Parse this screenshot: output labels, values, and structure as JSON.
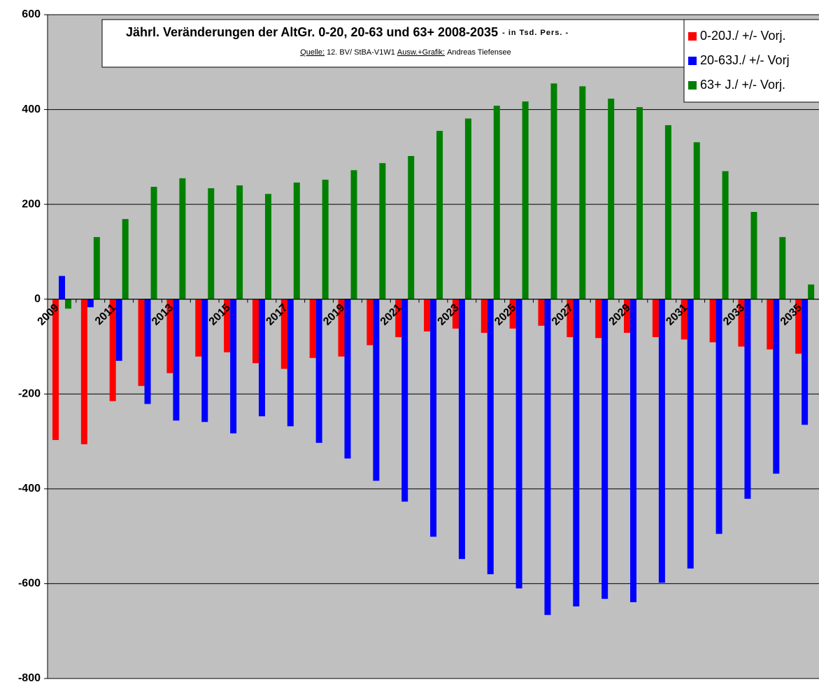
{
  "chart_data": {
    "type": "bar",
    "title": "Jährl. Veränderungen der AltGr. 0-20, 20-63 und 63+ 2008-2035",
    "title_suffix": "- in Tsd. Pers. -",
    "source": [
      "Quelle:",
      "12. BV/ StBA-V1W1",
      "Ausw.+Grafik:",
      "Andreas Tiefensee"
    ],
    "categories": [
      "2009",
      null,
      "2011",
      null,
      "2013",
      null,
      "2015",
      null,
      "2017",
      null,
      "2019",
      null,
      "2021",
      null,
      "2023",
      null,
      "2025",
      null,
      "2027",
      null,
      "2029",
      null,
      "2031",
      null,
      "2033",
      null,
      "2035"
    ],
    "series": [
      {
        "name": "0-20J./ +/- Vorj.",
        "color": "#ff0000",
        "values": [
          -297,
          -306,
          -215,
          -183,
          -156,
          -121,
          -112,
          -135,
          -147,
          -124,
          -121,
          -97,
          -80,
          -68,
          -62,
          -71,
          -62,
          -56,
          -80,
          -82,
          -71,
          -80,
          -85,
          -91,
          -100,
          -106,
          -115
        ]
      },
      {
        "name": "20-63J./ +/- Vorj",
        "color": "#0000ff",
        "values": [
          49,
          -17,
          -130,
          -221,
          -256,
          -259,
          -283,
          -247,
          -268,
          -303,
          -336,
          -383,
          -427,
          -501,
          -548,
          -580,
          -610,
          -666,
          -648,
          -632,
          -639,
          -598,
          -568,
          -495,
          -421,
          -368,
          -265
        ]
      },
      {
        "name": "63+ J./ +/- Vorj.",
        "color": "#008000",
        "values": [
          -20,
          131,
          169,
          237,
          255,
          234,
          240,
          222,
          246,
          252,
          272,
          287,
          302,
          355,
          381,
          408,
          417,
          455,
          449,
          423,
          405,
          367,
          331,
          270,
          184,
          131,
          31
        ]
      }
    ],
    "ylim": [
      -800,
      600
    ],
    "yticks": [
      -800,
      -600,
      -400,
      -200,
      0,
      200,
      400,
      600
    ],
    "grid": true,
    "legend": "top-right"
  }
}
